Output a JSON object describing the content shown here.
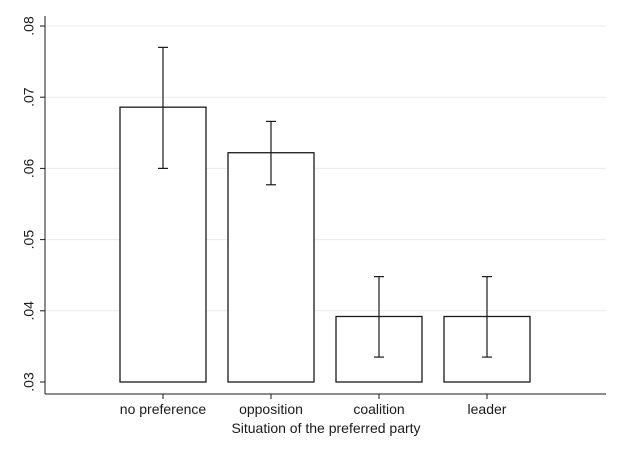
{
  "chart_data": {
    "type": "bar",
    "title": "",
    "xlabel": "Situation of the preferred party",
    "ylabel": "",
    "categories": [
      "no preference",
      "opposition",
      "coalition",
      "leader"
    ],
    "values": [
      0.0686,
      0.0622,
      0.0392,
      0.0392
    ],
    "error_low": [
      0.06,
      0.0577,
      0.0335,
      0.0335
    ],
    "error_high": [
      0.077,
      0.0666,
      0.0448,
      0.0448
    ],
    "bar_base": 0.03,
    "ylim": [
      0.03,
      0.08
    ],
    "yticks": [
      0.03,
      0.04,
      0.05,
      0.06,
      0.07,
      0.08
    ],
    "ytick_labels": [
      ".03",
      ".04",
      ".05",
      ".06",
      ".07",
      ".08"
    ],
    "grid": true,
    "colors": {
      "bar_fill": "#ffffff",
      "bar_stroke": "#1a1a1a",
      "grid": "#eaeaea",
      "axis": "#1a1a1a"
    }
  }
}
